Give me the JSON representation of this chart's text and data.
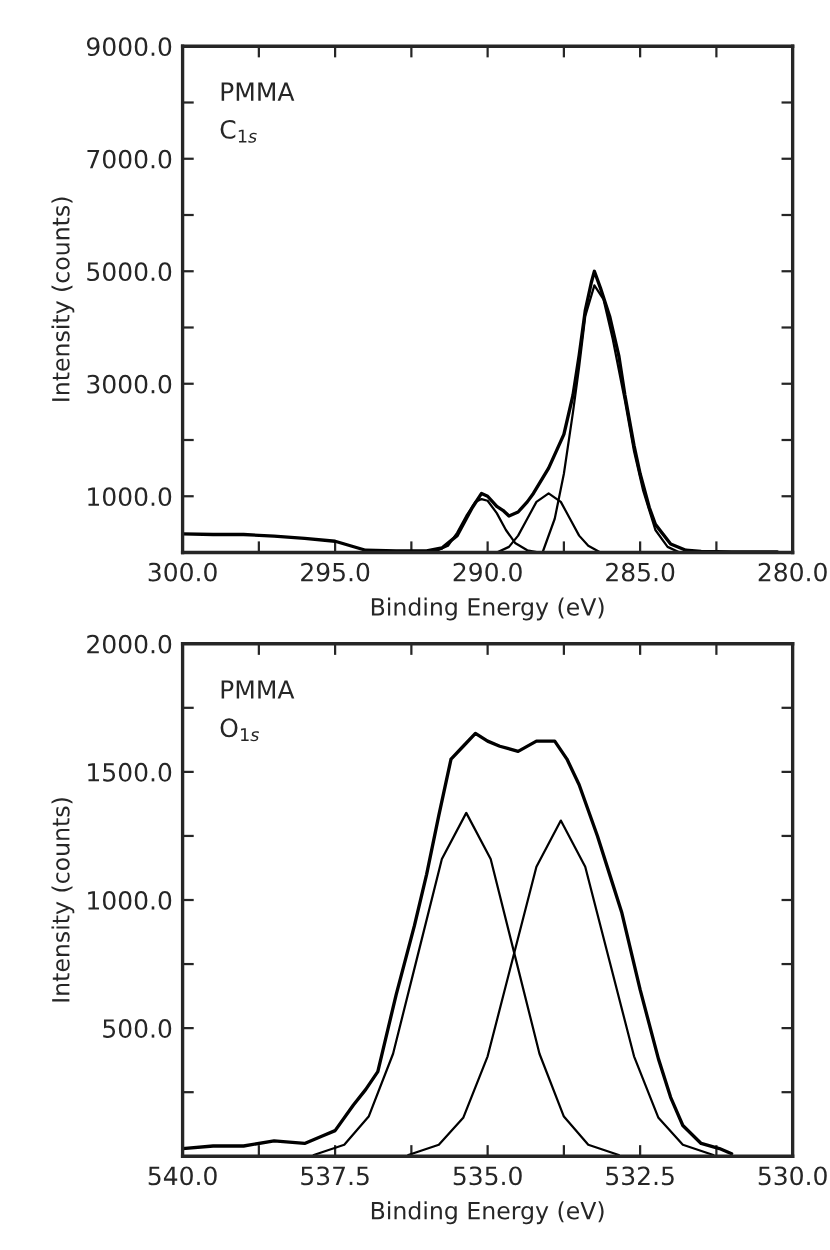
{
  "chart_data": [
    {
      "type": "line",
      "xlabel": "Binding Energy (eV)",
      "ylabel": "Intensity (counts)",
      "annotations": [
        "PMMA",
        "C$_{1s}$"
      ],
      "xlim": [
        300.0,
        280.0
      ],
      "ylim": [
        0,
        9000
      ],
      "xticks": [
        {
          "value": 300,
          "label": "300.0"
        },
        {
          "value": 297.5,
          "label": null
        },
        {
          "value": 295,
          "label": "295.0"
        },
        {
          "value": 292.5,
          "label": null
        },
        {
          "value": 290,
          "label": "290.0"
        },
        {
          "value": 287.5,
          "label": null
        },
        {
          "value": 285,
          "label": "285.0"
        },
        {
          "value": 282.5,
          "label": null
        },
        {
          "value": 280,
          "label": "280.0"
        }
      ],
      "yticks": [
        {
          "value": 1000,
          "label": "1000.0"
        },
        {
          "value": 2000,
          "label": null
        },
        {
          "value": 3000,
          "label": "3000.0"
        },
        {
          "value": 4000,
          "label": null
        },
        {
          "value": 5000,
          "label": "5000.0"
        },
        {
          "value": 6000,
          "label": null
        },
        {
          "value": 7000,
          "label": "7000.0"
        },
        {
          "value": 8000,
          "label": null
        },
        {
          "value": 9000,
          "label": "9000.0"
        }
      ],
      "grid": false,
      "legend": false,
      "marker": "none",
      "line_style": "solid",
      "series": [
        {
          "color": "#000000",
          "x": [
            300,
            299,
            298,
            297,
            296,
            295,
            294.5,
            294,
            293,
            292,
            291.5,
            291,
            290.7,
            290.5,
            290.2,
            290,
            289.7,
            289.5,
            289.3,
            289,
            288.7,
            288.5,
            288,
            287.5,
            287.2,
            287,
            286.8,
            286.6,
            286.5,
            286.3,
            286,
            285.7,
            285.5,
            285.2,
            285,
            284.7,
            284.5,
            284,
            283.5,
            283,
            282,
            281,
            280.5
          ],
          "values": [
            330,
            320,
            320,
            290,
            250,
            200,
            120,
            40,
            30,
            30,
            80,
            300,
            600,
            800,
            1050,
            1000,
            820,
            750,
            650,
            720,
            900,
            1050,
            1500,
            2100,
            2800,
            3500,
            4300,
            4800,
            5000,
            4700,
            4200,
            3500,
            2800,
            1900,
            1400,
            800,
            500,
            150,
            40,
            20,
            10,
            10,
            10
          ]
        },
        {
          "color": "#000000",
          "x": [
            291.8,
            291.3,
            291,
            290.7,
            290.4,
            290.2,
            290,
            289.7,
            289.4,
            289.1,
            288.7,
            288.3
          ],
          "values": [
            0,
            120,
            350,
            650,
            900,
            950,
            920,
            700,
            400,
            170,
            40,
            0
          ]
        },
        {
          "color": "#000000",
          "x": [
            289.7,
            289.3,
            289,
            288.7,
            288.4,
            288,
            287.6,
            287.3,
            287,
            286.7,
            286.3
          ],
          "values": [
            0,
            100,
            300,
            600,
            900,
            1050,
            900,
            600,
            300,
            120,
            0
          ]
        },
        {
          "color": "#000000",
          "x": [
            288.2,
            287.8,
            287.5,
            287.2,
            287,
            286.8,
            286.5,
            286.2,
            285.9,
            285.5,
            285.2,
            284.9,
            284.5,
            284.1,
            283.7
          ],
          "values": [
            0,
            600,
            1400,
            2500,
            3300,
            4200,
            4750,
            4500,
            3800,
            2700,
            1800,
            1100,
            400,
            100,
            0
          ]
        }
      ]
    },
    {
      "type": "line",
      "xlabel": "Binding Energy (eV)",
      "ylabel": "Intensity (counts)",
      "annotations": [
        "PMMA",
        "O$_{1s}$"
      ],
      "xlim": [
        540.0,
        530.0
      ],
      "ylim": [
        0,
        2000
      ],
      "xticks": [
        {
          "value": 540,
          "label": "540.0"
        },
        {
          "value": 538.75,
          "label": null
        },
        {
          "value": 537.5,
          "label": "537.5"
        },
        {
          "value": 536.25,
          "label": null
        },
        {
          "value": 535,
          "label": "535.0"
        },
        {
          "value": 533.75,
          "label": null
        },
        {
          "value": 532.5,
          "label": "532.5"
        },
        {
          "value": 531.25,
          "label": null
        },
        {
          "value": 530,
          "label": "530.0"
        }
      ],
      "yticks": [
        {
          "value": 250,
          "label": null
        },
        {
          "value": 500,
          "label": "500.0"
        },
        {
          "value": 750,
          "label": null
        },
        {
          "value": 1000,
          "label": "1000.0"
        },
        {
          "value": 1250,
          "label": null
        },
        {
          "value": 1500,
          "label": "1500.0"
        },
        {
          "value": 1750,
          "label": null
        },
        {
          "value": 2000,
          "label": "2000.0"
        }
      ],
      "grid": false,
      "legend": false,
      "marker": "none",
      "line_style": "solid",
      "series": [
        {
          "color": "#000000",
          "x": [
            540,
            539.5,
            539,
            538.5,
            538,
            537.7,
            537.5,
            537.2,
            537,
            536.8,
            536.5,
            536.2,
            536,
            535.8,
            535.6,
            535.4,
            535.2,
            535,
            534.8,
            534.5,
            534.2,
            533.9,
            533.7,
            533.5,
            533.2,
            533,
            532.8,
            532.5,
            532.2,
            532,
            531.8,
            531.5,
            531.2,
            531
          ],
          "values": [
            30,
            40,
            40,
            60,
            50,
            80,
            100,
            200,
            260,
            330,
            630,
            900,
            1100,
            1330,
            1550,
            1600,
            1650,
            1620,
            1600,
            1580,
            1620,
            1620,
            1550,
            1450,
            1250,
            1100,
            950,
            650,
            380,
            230,
            120,
            50,
            30,
            10
          ]
        },
        {
          "color": "#000000",
          "x": [
            537.85,
            537.35,
            536.95,
            536.55,
            536.15,
            535.75,
            535.35,
            534.95,
            534.55,
            534.15,
            533.75,
            533.35,
            532.85
          ],
          "values": [
            5,
            45,
            155,
            400,
            780,
            1160,
            1340,
            1160,
            780,
            400,
            155,
            45,
            5
          ]
        },
        {
          "color": "#000000",
          "x": [
            536.3,
            535.8,
            535.4,
            535,
            534.6,
            534.2,
            533.8,
            533.4,
            533,
            532.6,
            532.2,
            531.8,
            531.3
          ],
          "values": [
            5,
            45,
            150,
            390,
            760,
            1130,
            1310,
            1130,
            760,
            390,
            150,
            45,
            5
          ]
        }
      ]
    }
  ]
}
